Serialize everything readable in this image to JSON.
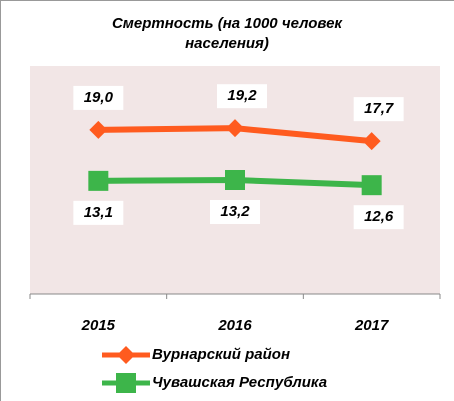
{
  "chart_data": {
    "type": "line",
    "title": "Смертность (на 1000 человек населения)",
    "categories": [
      "2015",
      "2016",
      "2017"
    ],
    "series": [
      {
        "name": "Вурнарский район",
        "color": "#ff5b1f",
        "marker": "diamond",
        "values": [
          19.0,
          19.2,
          17.7
        ],
        "value_labels": [
          "19,0",
          "19,2",
          "17,7"
        ]
      },
      {
        "name": "Чувашская Республика",
        "color": "#3db54a",
        "marker": "square",
        "values": [
          13.1,
          13.2,
          12.6
        ],
        "value_labels": [
          "13,1",
          "13,2",
          "12,6"
        ]
      }
    ],
    "ylim": [
      0,
      26.4
    ],
    "plot_background": "#f2e6e6",
    "legend": "bottom"
  }
}
